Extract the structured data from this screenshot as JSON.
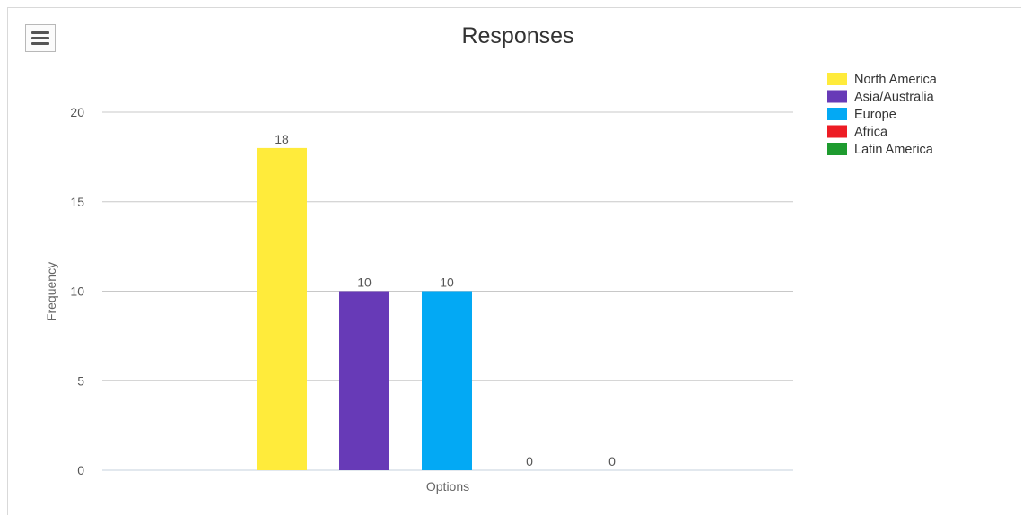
{
  "toolbar": {
    "menu_icon": "hamburger-menu-icon"
  },
  "chart_data": {
    "type": "bar",
    "title": "Responses",
    "xlabel": "Options",
    "ylabel": "Frequency",
    "ylim": [
      0,
      20
    ],
    "yticks": [
      0,
      5,
      10,
      15,
      20
    ],
    "grid": true,
    "legend_position": "top-right",
    "series": [
      {
        "name": "North America",
        "value": 18,
        "color": "#FFEB3B"
      },
      {
        "name": "Asia/Australia",
        "value": 10,
        "color": "#673AB7"
      },
      {
        "name": "Europe",
        "value": 10,
        "color": "#03A9F4"
      },
      {
        "name": "Africa",
        "value": 0,
        "color": "#ED1C24"
      },
      {
        "name": "Latin America",
        "value": 0,
        "color": "#1E9B2F"
      }
    ]
  }
}
